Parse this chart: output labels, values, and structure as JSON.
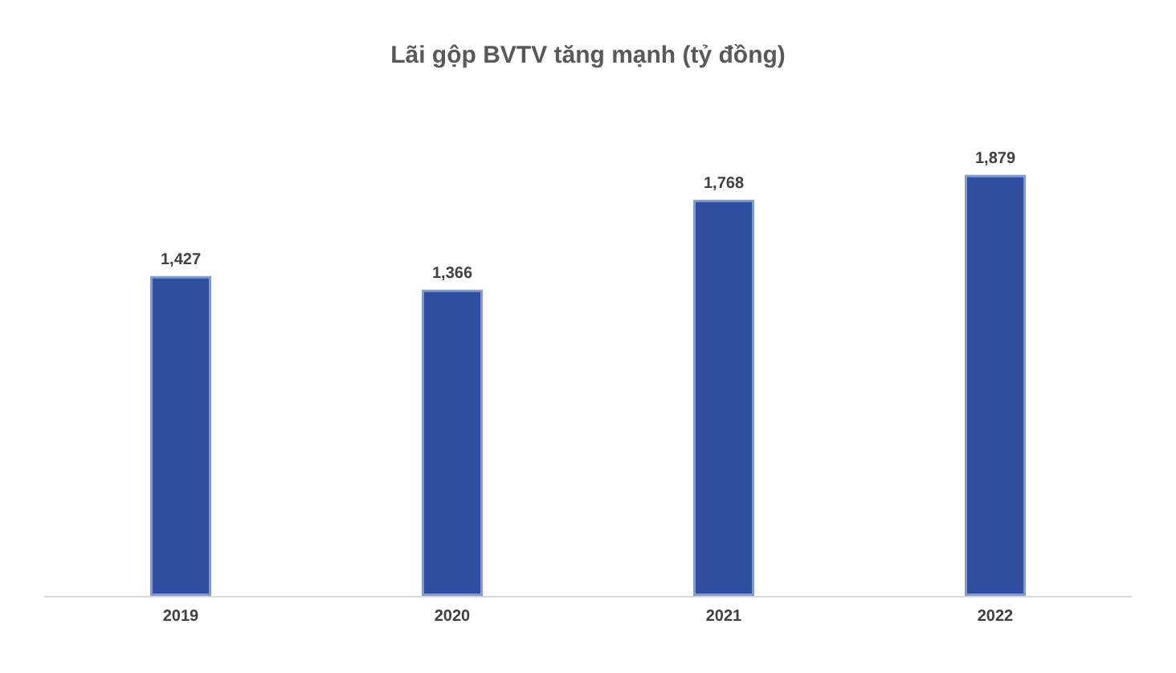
{
  "chart_data": {
    "type": "bar",
    "title": "Lãi gộp BVTV tăng mạnh (tỷ đồng)",
    "categories": [
      "2019",
      "2020",
      "2021",
      "2022"
    ],
    "values": [
      1427,
      1366,
      1768,
      1879
    ],
    "value_labels": [
      "1,427",
      "1,366",
      "1,768",
      "1,879"
    ],
    "color": "#2f4f9e",
    "grid": false
  }
}
